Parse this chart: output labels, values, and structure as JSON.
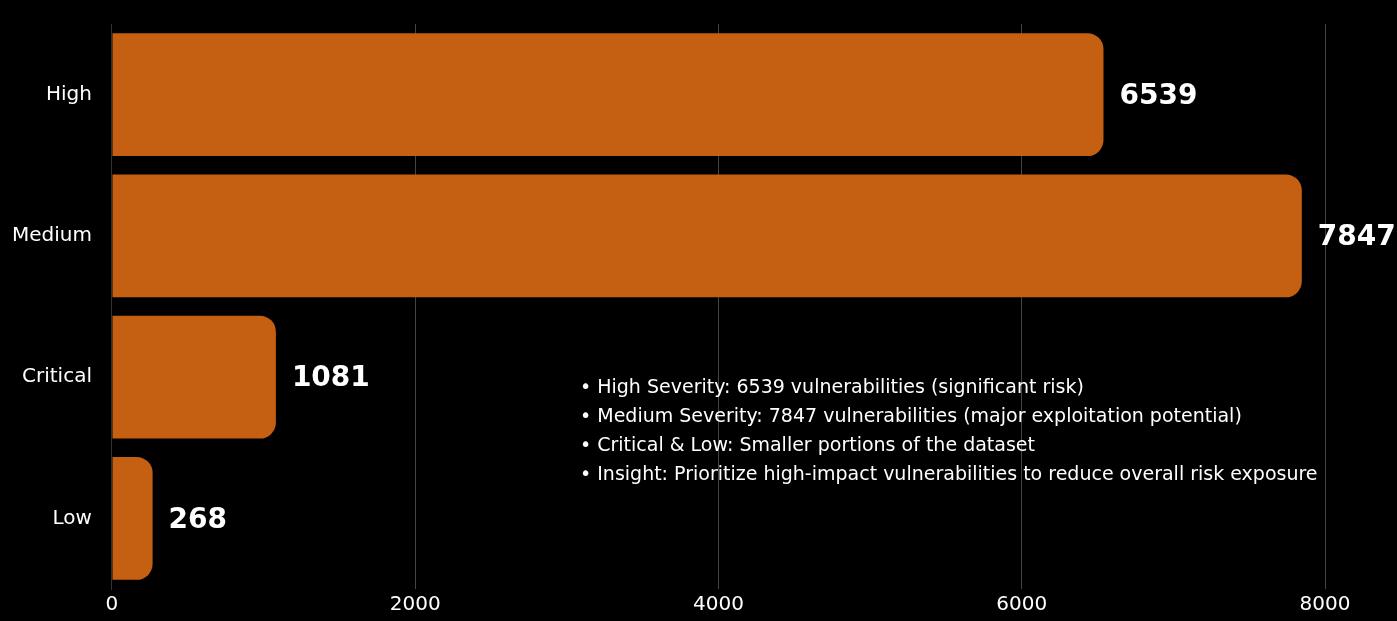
{
  "chart_data": {
    "type": "bar",
    "orientation": "horizontal",
    "categories": [
      "High",
      "Medium",
      "Critical",
      "Low"
    ],
    "values": [
      6539,
      7847,
      1081,
      268
    ],
    "color": "#c55f11",
    "xlim": [
      0,
      8000
    ],
    "xticks": [
      0,
      2000,
      4000,
      6000,
      8000
    ],
    "grid": "x",
    "data_labels": true,
    "annotations": [
      "• High Severity: 6539 vulnerabilities (significant risk)",
      "• Medium Severity: 7847 vulnerabilities (major exploitation potential)",
      "• Critical & Low: Smaller portions of the dataset",
      "• Insight: Prioritize high-impact vulnerabilities to reduce overall risk exposure"
    ]
  }
}
